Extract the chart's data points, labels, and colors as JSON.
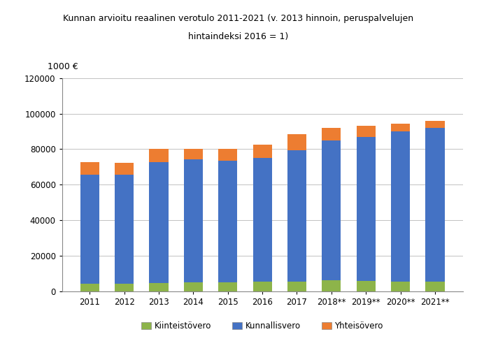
{
  "title_line1": "Kunnan arvioitu reaalinen verotulo 2011-2021 (v. 2013 hinnoin, peruspalvelujen",
  "title_line2": "hintaindeksi 2016 = 1)",
  "ylabel": "1000 €",
  "categories": [
    "2011",
    "2012",
    "2013",
    "2014",
    "2015",
    "2016",
    "2017",
    "2018**",
    "2019**",
    "2020**",
    "2021**"
  ],
  "kiinteistovero": [
    4200,
    4200,
    4500,
    4800,
    5000,
    5200,
    5500,
    6000,
    5800,
    5500,
    5500
  ],
  "kunnallisvero": [
    61500,
    61200,
    68000,
    69500,
    68500,
    70000,
    74000,
    79000,
    81000,
    84500,
    86500
  ],
  "yhteisovero": [
    6800,
    7000,
    7500,
    5800,
    6800,
    7500,
    9000,
    7000,
    6500,
    4500,
    4000
  ],
  "color_kiinteisto": "#8db44a",
  "color_kunnallis": "#4472c4",
  "color_yhteis": "#ed7d31",
  "ylim": [
    0,
    120000
  ],
  "yticks": [
    0,
    20000,
    40000,
    60000,
    80000,
    100000,
    120000
  ],
  "legend_labels": [
    "Kiinteistövero",
    "Kunnallisvero",
    "Yhteisövero"
  ],
  "bar_width": 0.55
}
